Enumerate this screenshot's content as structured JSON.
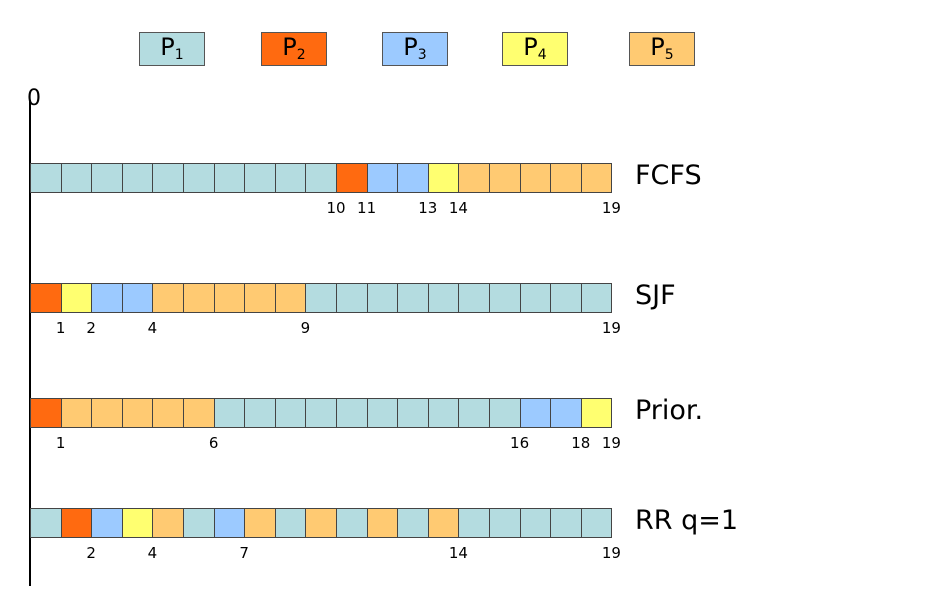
{
  "colors": {
    "P1": "#b4dce0",
    "P2": "#ff6a10",
    "P3": "#9ccaff",
    "P4": "#ffff70",
    "P5": "#ffca72"
  },
  "legend": [
    {
      "id": "P1",
      "base": "P",
      "sub": "1"
    },
    {
      "id": "P2",
      "base": "P",
      "sub": "2"
    },
    {
      "id": "P3",
      "base": "P",
      "sub": "3"
    },
    {
      "id": "P4",
      "base": "P",
      "sub": "4"
    },
    {
      "id": "P5",
      "base": "P",
      "sub": "5"
    }
  ],
  "origin_label": "0",
  "rows": [
    {
      "name": "FCFS",
      "slots": [
        "P1",
        "P1",
        "P1",
        "P1",
        "P1",
        "P1",
        "P1",
        "P1",
        "P1",
        "P1",
        "P2",
        "P3",
        "P3",
        "P4",
        "P5",
        "P5",
        "P5",
        "P5",
        "P5"
      ],
      "ticks": [
        {
          "t": 10,
          "label": "10"
        },
        {
          "t": 11,
          "label": "11"
        },
        {
          "t": 13,
          "label": "13"
        },
        {
          "t": 14,
          "label": "14"
        },
        {
          "t": 19,
          "label": "19"
        }
      ]
    },
    {
      "name": "SJF",
      "slots": [
        "P2",
        "P4",
        "P3",
        "P3",
        "P5",
        "P5",
        "P5",
        "P5",
        "P5",
        "P1",
        "P1",
        "P1",
        "P1",
        "P1",
        "P1",
        "P1",
        "P1",
        "P1",
        "P1"
      ],
      "ticks": [
        {
          "t": 1,
          "label": "1"
        },
        {
          "t": 2,
          "label": "2"
        },
        {
          "t": 4,
          "label": "4"
        },
        {
          "t": 9,
          "label": "9"
        },
        {
          "t": 19,
          "label": "19"
        }
      ]
    },
    {
      "name": "Prior.",
      "slots": [
        "P2",
        "P5",
        "P5",
        "P5",
        "P5",
        "P5",
        "P1",
        "P1",
        "P1",
        "P1",
        "P1",
        "P1",
        "P1",
        "P1",
        "P1",
        "P1",
        "P3",
        "P3",
        "P4"
      ],
      "ticks": [
        {
          "t": 1,
          "label": "1"
        },
        {
          "t": 6,
          "label": "6"
        },
        {
          "t": 16,
          "label": "16"
        },
        {
          "t": 18,
          "label": "18"
        },
        {
          "t": 19,
          "label": "19"
        }
      ]
    },
    {
      "name": "RR q=1",
      "slots": [
        "P1",
        "P2",
        "P3",
        "P4",
        "P5",
        "P1",
        "P3",
        "P5",
        "P1",
        "P5",
        "P1",
        "P5",
        "P1",
        "P5",
        "P1",
        "P1",
        "P1",
        "P1",
        "P1"
      ],
      "ticks": [
        {
          "t": 2,
          "label": "2"
        },
        {
          "t": 4,
          "label": "4"
        },
        {
          "t": 7,
          "label": "7"
        },
        {
          "t": 14,
          "label": "14"
        },
        {
          "t": 19,
          "label": "19"
        }
      ]
    }
  ]
}
